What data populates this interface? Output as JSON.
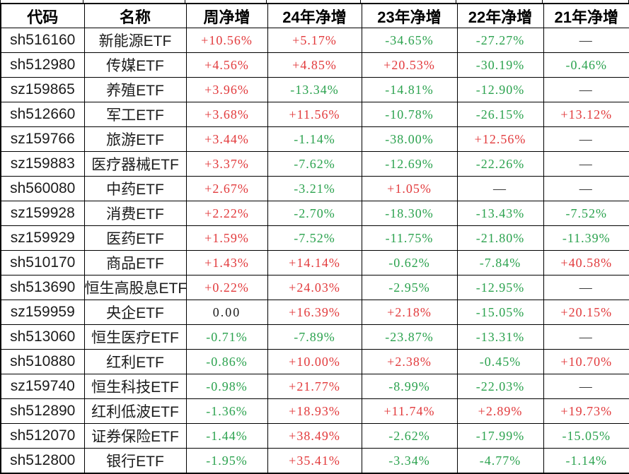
{
  "table": {
    "columns": [
      "代码",
      "名称",
      "周净增",
      "24年净增",
      "23年净增",
      "22年净增",
      "21年净增"
    ],
    "rows": [
      {
        "code": "sh516160",
        "name": "新能源ETF",
        "values": [
          "+10.56%",
          "+5.17%",
          "-34.65%",
          "-27.27%",
          "—"
        ]
      },
      {
        "code": "sh512980",
        "name": "传媒ETF",
        "values": [
          "+4.56%",
          "+4.85%",
          "+20.53%",
          "-30.19%",
          "-0.46%"
        ]
      },
      {
        "code": "sz159865",
        "name": "养殖ETF",
        "values": [
          "+3.96%",
          "-13.34%",
          "-14.81%",
          "-12.90%",
          "—"
        ]
      },
      {
        "code": "sh512660",
        "name": "军工ETF",
        "values": [
          "+3.68%",
          "+11.56%",
          "-10.78%",
          "-26.15%",
          "+13.12%"
        ]
      },
      {
        "code": "sz159766",
        "name": "旅游ETF",
        "values": [
          "+3.44%",
          "-1.14%",
          "-38.00%",
          "+12.56%",
          "—"
        ]
      },
      {
        "code": "sz159883",
        "name": "医疗器械ETF",
        "values": [
          "+3.37%",
          "-7.62%",
          "-12.69%",
          "-22.26%",
          "—"
        ]
      },
      {
        "code": "sh560080",
        "name": "中药ETF",
        "values": [
          "+2.67%",
          "-3.21%",
          "+1.05%",
          "—",
          "—"
        ]
      },
      {
        "code": "sz159928",
        "name": "消费ETF",
        "values": [
          "+2.22%",
          "-2.70%",
          "-18.30%",
          "-13.43%",
          "-7.52%"
        ]
      },
      {
        "code": "sz159929",
        "name": "医药ETF",
        "values": [
          "+1.59%",
          "-7.52%",
          "-11.75%",
          "-21.80%",
          "-11.39%"
        ]
      },
      {
        "code": "sh510170",
        "name": "商品ETF",
        "values": [
          "+1.43%",
          "+14.14%",
          "-0.62%",
          "-7.84%",
          "+40.58%"
        ]
      },
      {
        "code": "sh513690",
        "name": "恒生高股息ETF",
        "values": [
          "+0.22%",
          "+24.03%",
          "-2.95%",
          "-12.95%",
          "—"
        ]
      },
      {
        "code": "sz159959",
        "name": "央企ETF",
        "values": [
          "0.00",
          "+16.39%",
          "+2.18%",
          "-15.05%",
          "+20.15%"
        ]
      },
      {
        "code": "sh513060",
        "name": "恒生医疗ETF",
        "values": [
          "-0.71%",
          "-7.89%",
          "-23.87%",
          "-13.31%",
          "—"
        ]
      },
      {
        "code": "sh510880",
        "name": "红利ETF",
        "values": [
          "-0.86%",
          "+10.00%",
          "+2.38%",
          "-0.45%",
          "+10.70%"
        ]
      },
      {
        "code": "sz159740",
        "name": "恒生科技ETF",
        "values": [
          "-0.98%",
          "+21.77%",
          "-8.99%",
          "-22.03%",
          "—"
        ]
      },
      {
        "code": "sh512890",
        "name": "红利低波ETF",
        "values": [
          "-1.36%",
          "+18.93%",
          "+11.74%",
          "+2.89%",
          "+19.73%"
        ]
      },
      {
        "code": "sh512070",
        "name": "证券保险ETF",
        "values": [
          "-1.44%",
          "+38.49%",
          "-2.62%",
          "-17.99%",
          "-15.05%"
        ]
      },
      {
        "code": "sh512800",
        "name": "银行ETF",
        "values": [
          "-1.95%",
          "+35.41%",
          "-3.34%",
          "-4.77%",
          "-1.14%"
        ]
      }
    ]
  },
  "colors": {
    "positive": "#e23a3c",
    "negative": "#2ba24e",
    "neutral": "#1c1c1c",
    "border": "#000000",
    "background": "#ffffff"
  }
}
